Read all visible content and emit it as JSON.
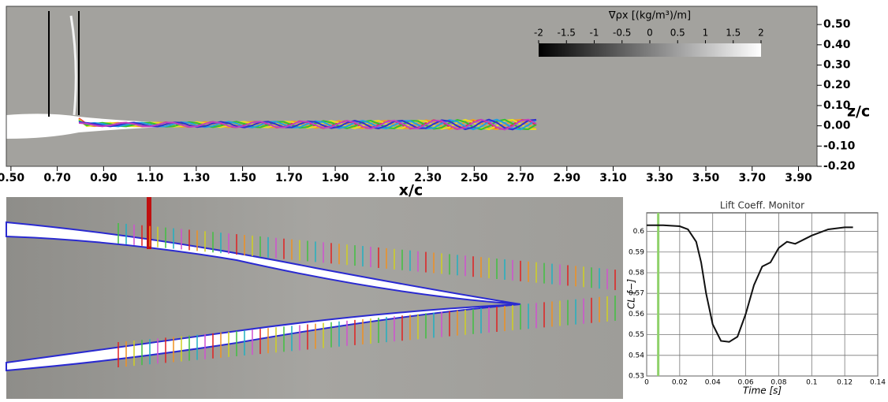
{
  "chart_data": [
    {
      "type": "field",
      "x_label": "x/c",
      "y_label": "z/c",
      "xlim": [
        0.48,
        3.98
      ],
      "xticks": [
        {
          "value": 0.5,
          "label": "0.50"
        },
        {
          "value": 0.7,
          "label": "0.70"
        },
        {
          "value": 0.9,
          "label": "0.90"
        },
        {
          "value": 1.1,
          "label": "1.10"
        },
        {
          "value": 1.3,
          "label": "1.30"
        },
        {
          "value": 1.5,
          "label": "1.50"
        },
        {
          "value": 1.7,
          "label": "1.70"
        },
        {
          "value": 1.9,
          "label": "1.90"
        },
        {
          "value": 2.1,
          "label": "2.10"
        },
        {
          "value": 2.3,
          "label": "2.30"
        },
        {
          "value": 2.5,
          "label": "2.50"
        },
        {
          "value": 2.7,
          "label": "2.70"
        },
        {
          "value": 2.9,
          "label": "2.90"
        },
        {
          "value": 3.1,
          "label": "3.10"
        },
        {
          "value": 3.3,
          "label": "3.30"
        },
        {
          "value": 3.5,
          "label": "3.50"
        },
        {
          "value": 3.7,
          "label": "3.70"
        },
        {
          "value": 3.9,
          "label": "3.90"
        }
      ],
      "ylim": [
        -0.2,
        0.59
      ],
      "yticks": [
        {
          "value": 0.5,
          "label": "0.50"
        },
        {
          "value": 0.4,
          "label": "0.40"
        },
        {
          "value": 0.3,
          "label": "0.30"
        },
        {
          "value": 0.2,
          "label": "0.20"
        },
        {
          "value": 0.1,
          "label": "0.10"
        },
        {
          "value": 0,
          "label": "0.00"
        },
        {
          "value": -0.1,
          "label": "-0.10"
        },
        {
          "value": -0.2,
          "label": "-0.20"
        }
      ],
      "colorbar": {
        "title": "∇ρx [(kg/m³)/m]",
        "lim": [
          -2,
          2
        ],
        "ticks": [
          -2,
          -1.5,
          -1,
          -0.5,
          0,
          0.5,
          1,
          1.5,
          2
        ]
      }
    },
    {
      "type": "line",
      "title": "Lift Coeff. Monitor",
      "x_label": "Time [s]",
      "y_label": "CL [−]",
      "xlim": [
        0,
        0.14
      ],
      "xticks": [
        0,
        0.02,
        0.04,
        0.06,
        0.08,
        0.1,
        0.12,
        0.14
      ],
      "ylim": [
        0.53,
        0.609
      ],
      "yticks": [
        0.53,
        0.54,
        0.55,
        0.56,
        0.57,
        0.58,
        0.59,
        0.6
      ],
      "grid": true,
      "marker_x": 0.007,
      "marker_color": "#8fd16a",
      "series": [
        {
          "color": "#111111",
          "x": [
            0,
            0.01,
            0.02,
            0.025,
            0.03,
            0.033,
            0.036,
            0.04,
            0.045,
            0.05,
            0.055,
            0.06,
            0.065,
            0.07,
            0.075,
            0.08,
            0.085,
            0.09,
            0.095,
            0.1,
            0.11,
            0.12,
            0.125
          ],
          "values": [
            0.603,
            0.603,
            0.6025,
            0.601,
            0.595,
            0.585,
            0.57,
            0.555,
            0.547,
            0.5465,
            0.549,
            0.56,
            0.574,
            0.583,
            0.585,
            0.592,
            0.595,
            0.594,
            0.596,
            0.598,
            0.601,
            0.602,
            0.602
          ]
        }
      ]
    }
  ]
}
